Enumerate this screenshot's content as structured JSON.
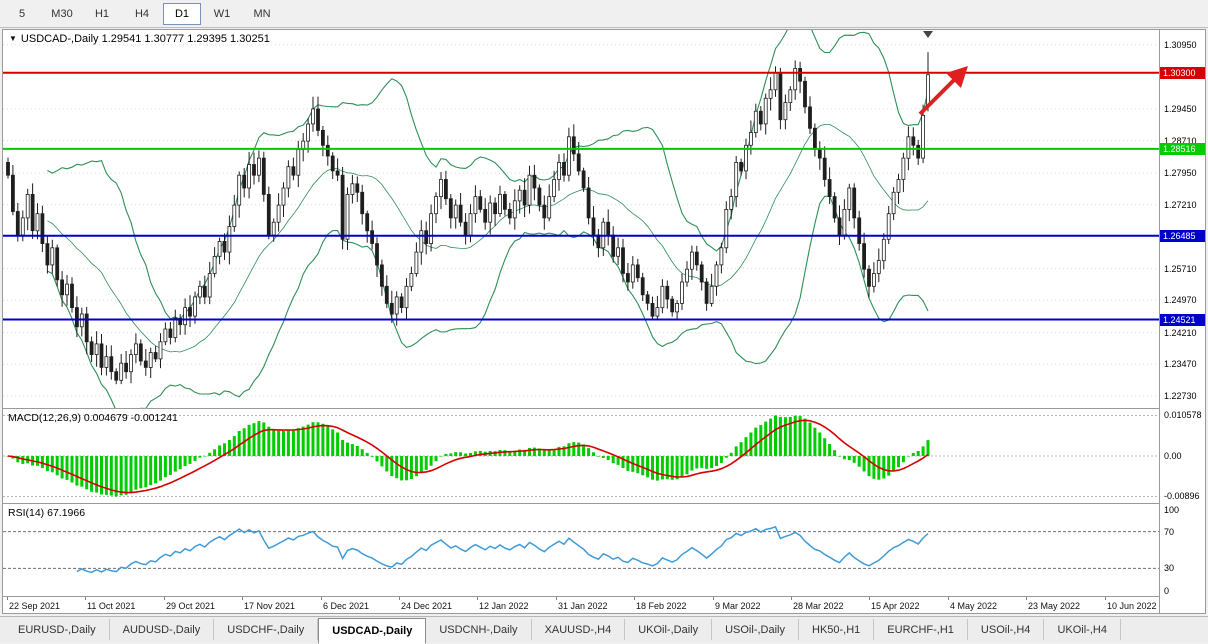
{
  "toolbar": {
    "timeframes": [
      {
        "label": "5",
        "active": false
      },
      {
        "label": "M30",
        "active": false
      },
      {
        "label": "H1",
        "active": false
      },
      {
        "label": "H4",
        "active": false
      },
      {
        "label": "D1",
        "active": true
      },
      {
        "label": "W1",
        "active": false
      },
      {
        "label": "MN",
        "active": false
      }
    ]
  },
  "tabs": [
    {
      "label": "EURUSD-,Daily",
      "active": false
    },
    {
      "label": "AUDUSD-,Daily",
      "active": false
    },
    {
      "label": "USDCHF-,Daily",
      "active": false
    },
    {
      "label": "USDCAD-,Daily",
      "active": true
    },
    {
      "label": "USDCNH-,Daily",
      "active": false
    },
    {
      "label": "XAUUSD-,H4",
      "active": false
    },
    {
      "label": "UKOil-,Daily",
      "active": false
    },
    {
      "label": "USOil-,Daily",
      "active": false
    },
    {
      "label": "HK50-,H1",
      "active": false
    },
    {
      "label": "EURCHF-,H1",
      "active": false
    },
    {
      "label": "USOil-,H4",
      "active": false
    },
    {
      "label": "UKOil-,H4",
      "active": false
    }
  ],
  "chart_data": {
    "type": "candlestick",
    "symbol": "USDCAD-,Daily",
    "title_text": "USDCAD-,Daily  1.29541 1.30777 1.29395 1.30251",
    "last_bar": {
      "open": 1.29541,
      "high": 1.30777,
      "low": 1.29395,
      "close": 1.30251
    },
    "first_open": 1.282,
    "price_min": 1.2245,
    "price_max": 1.313,
    "closes": [
      1.279,
      1.2705,
      1.265,
      1.269,
      1.2745,
      1.266,
      1.27,
      1.263,
      1.258,
      1.262,
      1.2545,
      1.251,
      1.2535,
      1.248,
      1.2435,
      1.2465,
      1.24,
      1.237,
      1.2395,
      1.234,
      1.2365,
      1.233,
      1.231,
      1.235,
      1.233,
      1.237,
      1.2395,
      1.2355,
      1.234,
      1.2375,
      1.236,
      1.24,
      1.243,
      1.241,
      1.2455,
      1.244,
      1.248,
      1.246,
      1.2505,
      1.253,
      1.2505,
      1.256,
      1.26,
      1.2635,
      1.261,
      1.267,
      1.272,
      1.279,
      1.276,
      1.2815,
      1.279,
      1.283,
      1.2745,
      1.265,
      1.268,
      1.272,
      1.276,
      1.281,
      1.279,
      1.285,
      1.287,
      1.291,
      1.2945,
      1.2895,
      1.286,
      1.2835,
      1.28,
      1.279,
      1.264,
      1.2745,
      1.277,
      1.275,
      1.27,
      1.266,
      1.263,
      1.258,
      1.253,
      1.249,
      1.2465,
      1.2505,
      1.248,
      1.253,
      1.256,
      1.261,
      1.266,
      1.263,
      1.27,
      1.274,
      1.278,
      1.2735,
      1.269,
      1.272,
      1.268,
      1.265,
      1.27,
      1.274,
      1.271,
      1.268,
      1.2725,
      1.27,
      1.2745,
      1.271,
      1.269,
      1.273,
      1.2755,
      1.272,
      1.279,
      1.276,
      1.272,
      1.269,
      1.274,
      1.278,
      1.282,
      1.279,
      1.288,
      1.284,
      1.28,
      1.276,
      1.269,
      1.265,
      1.262,
      1.268,
      1.265,
      1.26,
      1.262,
      1.256,
      1.254,
      1.258,
      1.255,
      1.251,
      1.249,
      1.246,
      1.248,
      1.253,
      1.25,
      1.247,
      1.249,
      1.254,
      1.257,
      1.261,
      1.258,
      1.254,
      1.249,
      1.253,
      1.258,
      1.262,
      1.271,
      1.274,
      1.282,
      1.28,
      1.286,
      1.289,
      1.294,
      1.291,
      1.297,
      1.299,
      1.303,
      1.292,
      1.296,
      1.299,
      1.304,
      1.301,
      1.295,
      1.29,
      1.285,
      1.283,
      1.278,
      1.274,
      1.269,
      1.265,
      1.271,
      1.276,
      1.269,
      1.263,
      1.257,
      1.253,
      1.256,
      1.259,
      1.264,
      1.27,
      1.275,
      1.278,
      1.283,
      1.288,
      1.286,
      1.283,
      1.293,
      1.30251
    ],
    "x_labels": [
      "22 Sep 2021",
      "11 Oct 2021",
      "29 Oct 2021",
      "17 Nov 2021",
      "6 Dec 2021",
      "24 Dec 2021",
      "12 Jan 2022",
      "31 Jan 2022",
      "18 Feb 2022",
      "9 Mar 2022",
      "28 Mar 2022",
      "15 Apr 2022",
      "4 May 2022",
      "23 May 2022",
      "10 Jun 2022"
    ],
    "y_ticks": [
      "1.30950",
      "1.29450",
      "1.28710",
      "1.27950",
      "1.27210",
      "1.25710",
      "1.24970",
      "1.24210",
      "1.23470",
      "1.22730"
    ],
    "hlines": [
      {
        "price": 1.303,
        "label": "1.30300",
        "color": "#d60000"
      },
      {
        "price": 1.28516,
        "label": "1.28516",
        "color": "#00cc00"
      },
      {
        "price": 1.26485,
        "label": "1.26485",
        "color": "#0000cc"
      },
      {
        "price": 1.24521,
        "label": "1.24521",
        "color": "#0000cc"
      }
    ],
    "bollinger": {
      "period": 20,
      "deviation": 2,
      "color": "#2f8f57"
    },
    "macd": {
      "label": "MACD(12,26,9)",
      "value": "0.004679",
      "signal_value": "-0.001241",
      "scale_top": "0.010578",
      "scale_zero": "0.00",
      "scale_bottom": "-0.00896",
      "hist_color": "#00cc00",
      "signal_color": "#d40000"
    },
    "rsi": {
      "label": "RSI(14)",
      "value": "67.1966",
      "levels": [
        "100",
        "70",
        "30",
        "0"
      ],
      "line_color": "#3f9bd8"
    },
    "candle_up_fill": "#ffffff",
    "candle_down_fill": "#1e1e1e",
    "candle_stroke": "#1e1e1e",
    "annotation_arrow_color": "#e02020"
  }
}
